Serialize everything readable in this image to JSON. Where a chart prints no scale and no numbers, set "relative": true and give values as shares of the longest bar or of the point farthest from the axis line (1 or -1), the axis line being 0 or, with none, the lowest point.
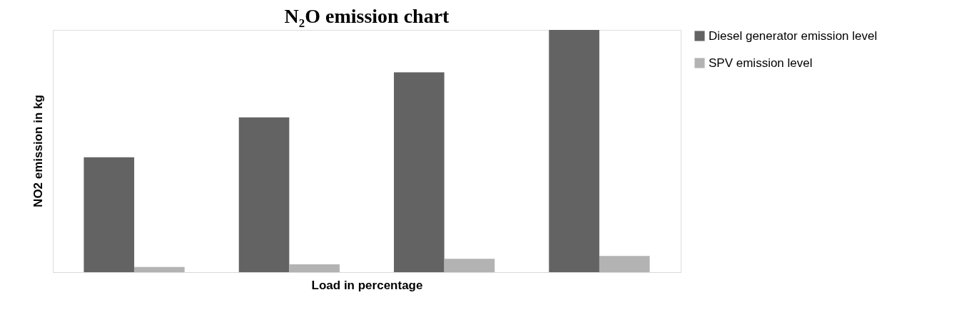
{
  "chart_data": {
    "type": "bar",
    "title": "N₂O emission  chart",
    "xlabel": "Load in percentage",
    "ylabel": "NO2 emission in kg",
    "relative": true,
    "categories": [
      null,
      null,
      null,
      null
    ],
    "series": [
      {
        "name": "Diesel generator emission level",
        "color": "#636363",
        "values": [
          0.474,
          0.639,
          0.825,
          1
        ]
      },
      {
        "name": "SPV emission level",
        "color": "#b3b3b3",
        "values": [
          0.021,
          0.032,
          0.055,
          0.067
        ]
      }
    ],
    "legend": "right",
    "grid": false,
    "tick_labels": false
  }
}
